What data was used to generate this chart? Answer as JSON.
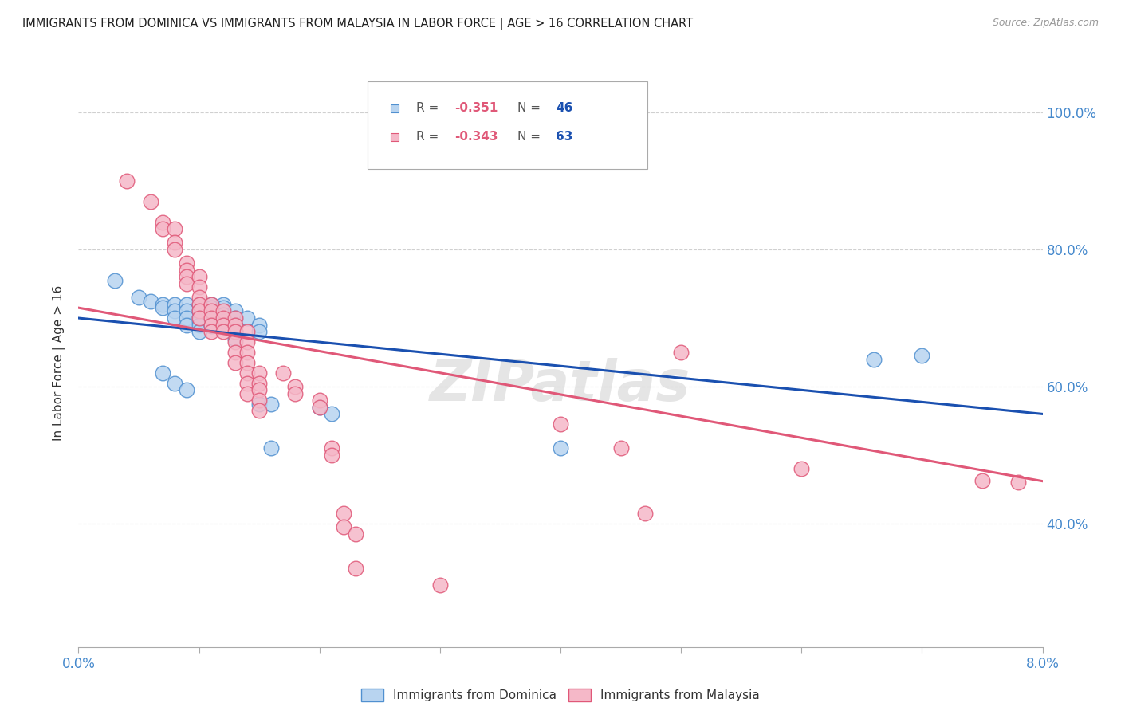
{
  "title": "IMMIGRANTS FROM DOMINICA VS IMMIGRANTS FROM MALAYSIA IN LABOR FORCE | AGE > 16 CORRELATION CHART",
  "source": "Source: ZipAtlas.com",
  "ylabel": "In Labor Force | Age > 16",
  "xmin": 0.0,
  "xmax": 0.08,
  "ymin": 0.22,
  "ymax": 1.05,
  "yticks": [
    0.4,
    0.6,
    0.8,
    1.0
  ],
  "ytick_labels": [
    "40.0%",
    "60.0%",
    "80.0%",
    "100.0%"
  ],
  "xticks": [
    0.0,
    0.01,
    0.02,
    0.03,
    0.04,
    0.05,
    0.06,
    0.07,
    0.08
  ],
  "xtick_labels": [
    "0.0%",
    "",
    "",
    "",
    "",
    "",
    "",
    "",
    "8.0%"
  ],
  "grid_color": "#d0d0d0",
  "background_color": "#ffffff",
  "dominica_color": "#b8d4f0",
  "malaysia_color": "#f5b8c8",
  "dominica_edge_color": "#5090d0",
  "malaysia_edge_color": "#e05878",
  "line_dominica_color": "#1a50b0",
  "line_malaysia_color": "#e05878",
  "R_dominica": -0.351,
  "N_dominica": 46,
  "R_malaysia": -0.343,
  "N_malaysia": 63,
  "legend_R_color": "#e05878",
  "legend_N_color": "#1a50b0",
  "axis_color": "#4488cc",
  "watermark": "ZIPatlas",
  "dominica_points": [
    [
      0.003,
      0.755
    ],
    [
      0.005,
      0.73
    ],
    [
      0.006,
      0.725
    ],
    [
      0.007,
      0.72
    ],
    [
      0.007,
      0.715
    ],
    [
      0.008,
      0.72
    ],
    [
      0.008,
      0.71
    ],
    [
      0.008,
      0.7
    ],
    [
      0.009,
      0.72
    ],
    [
      0.009,
      0.71
    ],
    [
      0.009,
      0.7
    ],
    [
      0.009,
      0.69
    ],
    [
      0.01,
      0.72
    ],
    [
      0.01,
      0.71
    ],
    [
      0.01,
      0.7
    ],
    [
      0.01,
      0.695
    ],
    [
      0.01,
      0.69
    ],
    [
      0.01,
      0.68
    ],
    [
      0.011,
      0.72
    ],
    [
      0.011,
      0.715
    ],
    [
      0.011,
      0.708
    ],
    [
      0.011,
      0.698
    ],
    [
      0.011,
      0.688
    ],
    [
      0.012,
      0.72
    ],
    [
      0.012,
      0.715
    ],
    [
      0.012,
      0.705
    ],
    [
      0.012,
      0.695
    ],
    [
      0.013,
      0.71
    ],
    [
      0.013,
      0.7
    ],
    [
      0.013,
      0.69
    ],
    [
      0.013,
      0.68
    ],
    [
      0.013,
      0.67
    ],
    [
      0.014,
      0.7
    ],
    [
      0.015,
      0.69
    ],
    [
      0.015,
      0.68
    ],
    [
      0.015,
      0.575
    ],
    [
      0.016,
      0.575
    ],
    [
      0.02,
      0.57
    ],
    [
      0.021,
      0.56
    ],
    [
      0.007,
      0.62
    ],
    [
      0.008,
      0.605
    ],
    [
      0.009,
      0.595
    ],
    [
      0.016,
      0.51
    ],
    [
      0.04,
      0.51
    ],
    [
      0.066,
      0.64
    ],
    [
      0.07,
      0.645
    ]
  ],
  "malaysia_points": [
    [
      0.004,
      0.9
    ],
    [
      0.006,
      0.87
    ],
    [
      0.007,
      0.84
    ],
    [
      0.007,
      0.83
    ],
    [
      0.008,
      0.83
    ],
    [
      0.008,
      0.81
    ],
    [
      0.008,
      0.8
    ],
    [
      0.009,
      0.78
    ],
    [
      0.009,
      0.77
    ],
    [
      0.009,
      0.76
    ],
    [
      0.009,
      0.75
    ],
    [
      0.01,
      0.76
    ],
    [
      0.01,
      0.745
    ],
    [
      0.01,
      0.73
    ],
    [
      0.01,
      0.72
    ],
    [
      0.01,
      0.71
    ],
    [
      0.01,
      0.7
    ],
    [
      0.011,
      0.72
    ],
    [
      0.011,
      0.71
    ],
    [
      0.011,
      0.7
    ],
    [
      0.011,
      0.69
    ],
    [
      0.011,
      0.68
    ],
    [
      0.012,
      0.71
    ],
    [
      0.012,
      0.7
    ],
    [
      0.012,
      0.69
    ],
    [
      0.012,
      0.68
    ],
    [
      0.013,
      0.7
    ],
    [
      0.013,
      0.69
    ],
    [
      0.013,
      0.68
    ],
    [
      0.013,
      0.665
    ],
    [
      0.013,
      0.65
    ],
    [
      0.013,
      0.635
    ],
    [
      0.014,
      0.68
    ],
    [
      0.014,
      0.665
    ],
    [
      0.014,
      0.65
    ],
    [
      0.014,
      0.635
    ],
    [
      0.014,
      0.62
    ],
    [
      0.014,
      0.605
    ],
    [
      0.014,
      0.59
    ],
    [
      0.015,
      0.62
    ],
    [
      0.015,
      0.605
    ],
    [
      0.015,
      0.595
    ],
    [
      0.015,
      0.58
    ],
    [
      0.015,
      0.565
    ],
    [
      0.017,
      0.62
    ],
    [
      0.018,
      0.6
    ],
    [
      0.018,
      0.59
    ],
    [
      0.02,
      0.58
    ],
    [
      0.02,
      0.57
    ],
    [
      0.021,
      0.51
    ],
    [
      0.021,
      0.5
    ],
    [
      0.022,
      0.415
    ],
    [
      0.022,
      0.395
    ],
    [
      0.023,
      0.385
    ],
    [
      0.023,
      0.335
    ],
    [
      0.03,
      0.31
    ],
    [
      0.04,
      0.545
    ],
    [
      0.045,
      0.51
    ],
    [
      0.047,
      0.415
    ],
    [
      0.05,
      0.65
    ],
    [
      0.06,
      0.48
    ],
    [
      0.075,
      0.463
    ],
    [
      0.078,
      0.46
    ]
  ],
  "dominica_line_x": [
    0.0,
    0.08
  ],
  "dominica_line_y": [
    0.7,
    0.56
  ],
  "malaysia_line_x": [
    0.0,
    0.08
  ],
  "malaysia_line_y": [
    0.715,
    0.462
  ]
}
